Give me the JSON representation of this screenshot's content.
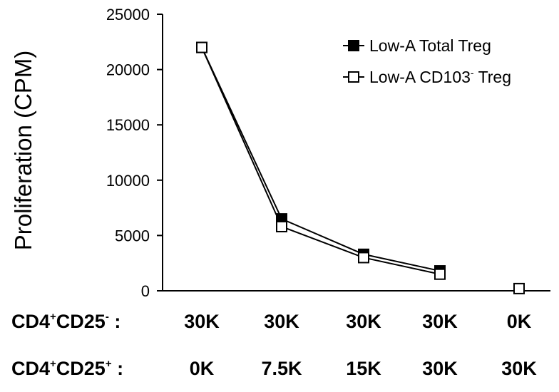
{
  "chart_data": {
    "type": "line",
    "ylabel": "Proliferation (CPM)",
    "ylim": [
      0,
      25000
    ],
    "yticks": [
      0,
      5000,
      10000,
      15000,
      20000,
      25000
    ],
    "ytick_labels": [
      "0",
      "5000",
      "10000",
      "15000",
      "20000",
      "25000"
    ],
    "x": [
      1,
      2,
      3,
      4,
      5
    ],
    "series": [
      {
        "name_main": "Low-A Total Treg",
        "name_sup": "",
        "name_tail": "",
        "marker": "filled-square",
        "color": "#000000",
        "values": [
          22000,
          6500,
          3300,
          1800,
          null
        ]
      },
      {
        "name_main": "Low-A CD103",
        "name_sup": "-",
        "name_tail": " Treg",
        "marker": "open-square",
        "color": "#000000",
        "values": [
          22000,
          5800,
          3000,
          1500,
          200
        ]
      }
    ],
    "legend_position": "top-right",
    "grid": false,
    "category_rows": [
      {
        "label_main": "CD4",
        "label_sup1": "+",
        "label_mid": "CD25",
        "label_sup2": "-",
        "label_tail": " :",
        "values": [
          "30K",
          "30K",
          "30K",
          "30K",
          "0K"
        ]
      },
      {
        "label_main": "CD4",
        "label_sup1": "+",
        "label_mid": "CD25",
        "label_sup2": "+",
        "label_tail": " :",
        "values": [
          "0K",
          "7.5K",
          "15K",
          "30K",
          "30K"
        ]
      }
    ]
  }
}
